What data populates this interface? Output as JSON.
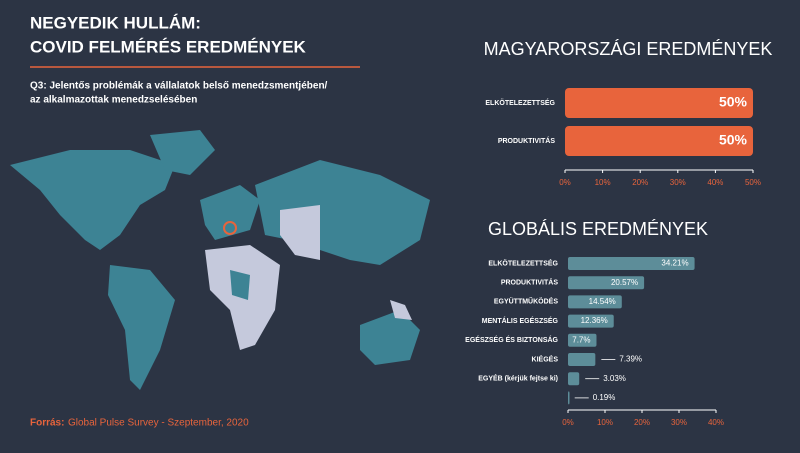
{
  "header": {
    "title": [
      "NEGYEDIK HULLÁM:",
      "COVID FELMÉRÉS EREDMÉNYEK"
    ],
    "question": [
      "Q3: Jelentős problémák a vállalatok belső menedzsmentjében/",
      "az alkalmazottak menedzselésében"
    ],
    "source_label": "Forrás:",
    "source": "Global Pulse Survey - Szeptember, 2020"
  },
  "chart_data": [
    {
      "type": "bar",
      "title": "MAGYARORSZÁGI EREDMÉNYEK",
      "categories": [
        "ELKÖTELEZETTSÉG",
        "PRODUKTIVITÁS"
      ],
      "values": [
        50,
        50
      ],
      "value_labels": [
        "50%",
        "50%"
      ],
      "color": "#e8643c",
      "xlim": [
        0,
        50
      ],
      "xticks": [
        {
          "value": 0,
          "label": "0%"
        },
        {
          "value": 10,
          "label": "10%"
        },
        {
          "value": 20,
          "label": "20%"
        },
        {
          "value": 30,
          "label": "30%"
        },
        {
          "value": 40,
          "label": "40%"
        },
        {
          "value": 50,
          "label": "50%"
        }
      ]
    },
    {
      "type": "bar",
      "title": "GLOBÁLIS EREDMÉNYEK",
      "categories": [
        "ELKÖTELEZETTSÉG",
        "PRODUKTIVITÁS",
        "EGYÜTTMŰKÖDÉS",
        "MENTÁLIS EGÉSZSÉG",
        "EGÉSZSÉG ÉS BIZTONSÁG",
        "KIÉGÉS",
        "EGYÉB (kérjük fejtse ki)",
        null
      ],
      "values": [
        34.21,
        20.57,
        14.54,
        12.36,
        7.7,
        7.39,
        3.03,
        0.19
      ],
      "value_labels": [
        "34.21%",
        "20.57%",
        "14.54%",
        "12.36%",
        "7.7%",
        "7.39%",
        "3.03%",
        "0.19%"
      ],
      "color": "#5d8d99",
      "xlim": [
        0,
        40
      ],
      "xticks": [
        {
          "value": 0,
          "label": "0%"
        },
        {
          "value": 10,
          "label": "10%"
        },
        {
          "value": 20,
          "label": "20%"
        },
        {
          "value": 30,
          "label": "30%"
        },
        {
          "value": 40,
          "label": "40%"
        }
      ]
    }
  ]
}
